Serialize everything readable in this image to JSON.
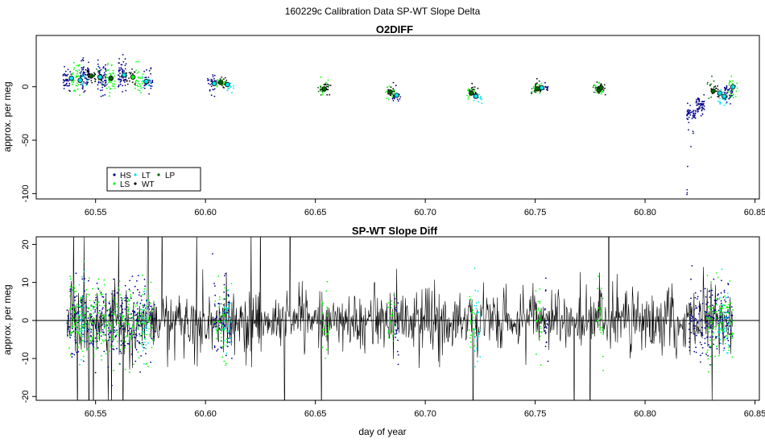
{
  "figure": {
    "main_title": "160229c   Calibration Data SP-WT Slope Delta",
    "xlabel": "day of year"
  },
  "chart_data": [
    {
      "type": "scatter",
      "title": "O2DIFF",
      "ylabel": "approx. per meg",
      "xlim": [
        60.523,
        60.852
      ],
      "ylim": [
        -105,
        48
      ],
      "x_ticks": [
        60.55,
        60.6,
        60.65,
        60.7,
        60.75,
        60.8,
        60.85
      ],
      "x_tick_labels": [
        "60.55",
        "60.60",
        "60.65",
        "60.70",
        "60.75",
        "60.80",
        "60.85"
      ],
      "y_ticks": [
        0,
        -50,
        -100
      ],
      "y_tick_labels": [
        "0",
        "-50",
        "-100"
      ],
      "legend": {
        "position": "bottom-left",
        "entries": [
          {
            "label": "HS",
            "color": "#00008b"
          },
          {
            "label": "LS",
            "color": "#00ff00"
          },
          {
            "label": "LT",
            "color": "#00e5ee"
          },
          {
            "label": "WT",
            "color": "#000000"
          },
          {
            "label": "LP",
            "color": "#006400"
          }
        ]
      },
      "series": [
        {
          "name": "HS",
          "color": "#00008b",
          "clusters": [
            {
              "x": 60.537,
              "y": 8,
              "sd": 5,
              "n": 40
            },
            {
              "x": 60.545,
              "y": 10,
              "sd": 7,
              "n": 60
            },
            {
              "x": 60.553,
              "y": 8,
              "sd": 7,
              "n": 60
            },
            {
              "x": 60.562,
              "y": 10,
              "sd": 7,
              "n": 60
            },
            {
              "x": 60.574,
              "y": 4,
              "sd": 5,
              "n": 40
            },
            {
              "x": 60.603,
              "y": 3,
              "sd": 6,
              "n": 30
            },
            {
              "x": 60.687,
              "y": -9,
              "sd": 2,
              "n": 15
            },
            {
              "x": 60.754,
              "y": -1,
              "sd": 2,
              "n": 15
            },
            {
              "x": 60.821,
              "y": -25,
              "sd": 4,
              "n": 50
            },
            {
              "x": 60.825,
              "y": -18,
              "sd": 4,
              "n": 60
            },
            {
              "x": 60.838,
              "y": -6,
              "sd": 4,
              "n": 40
            }
          ]
        },
        {
          "name": "LS",
          "color": "#00ff00",
          "clusters": [
            {
              "x": 60.541,
              "y": 8,
              "sd": 8,
              "n": 40
            },
            {
              "x": 60.557,
              "y": 9,
              "sd": 7,
              "n": 40
            },
            {
              "x": 60.57,
              "y": 6,
              "sd": 6,
              "n": 30
            },
            {
              "x": 60.607,
              "y": 4,
              "sd": 3,
              "n": 15
            },
            {
              "x": 60.654,
              "y": -1,
              "sd": 3,
              "n": 20
            },
            {
              "x": 60.684,
              "y": -6,
              "sd": 3,
              "n": 20
            },
            {
              "x": 60.721,
              "y": -5,
              "sd": 3,
              "n": 20
            },
            {
              "x": 60.751,
              "y": -2,
              "sd": 3,
              "n": 20
            },
            {
              "x": 60.779,
              "y": -2,
              "sd": 3,
              "n": 20
            },
            {
              "x": 60.84,
              "y": 0,
              "sd": 6,
              "n": 25
            }
          ]
        },
        {
          "name": "LT",
          "color": "#00e5ee",
          "clusters": [
            {
              "x": 60.544,
              "y": 6,
              "sd": 3,
              "n": 10
            },
            {
              "x": 60.573,
              "y": 5,
              "sd": 3,
              "n": 10
            },
            {
              "x": 60.611,
              "y": 1,
              "sd": 3,
              "n": 15
            },
            {
              "x": 60.724,
              "y": -10,
              "sd": 3,
              "n": 15
            },
            {
              "x": 60.835,
              "y": -12,
              "sd": 4,
              "n": 20
            }
          ]
        },
        {
          "name": "WT",
          "color": "#000000",
          "clusters": [
            {
              "x": 60.548,
              "y": 10,
              "sd": 4,
              "n": 20
            },
            {
              "x": 60.566,
              "y": 9,
              "sd": 4,
              "n": 20
            },
            {
              "x": 60.608,
              "y": 3,
              "sd": 3,
              "n": 12
            },
            {
              "x": 60.655,
              "y": -1,
              "sd": 3,
              "n": 15
            },
            {
              "x": 60.685,
              "y": -5,
              "sd": 3,
              "n": 15
            },
            {
              "x": 60.722,
              "y": -4,
              "sd": 3,
              "n": 15
            },
            {
              "x": 60.752,
              "y": 0,
              "sd": 3,
              "n": 15
            },
            {
              "x": 60.78,
              "y": -1,
              "sd": 3,
              "n": 15
            },
            {
              "x": 60.832,
              "y": -4,
              "sd": 3,
              "n": 15
            }
          ]
        },
        {
          "name": "LP",
          "color": "#006400",
          "clusters": [
            {
              "x": 60.551,
              "y": 9,
              "sd": 4,
              "n": 15
            },
            {
              "x": 60.606,
              "y": 4,
              "sd": 3,
              "n": 10
            },
            {
              "x": 60.653,
              "y": -2,
              "sd": 3,
              "n": 12
            },
            {
              "x": 60.75,
              "y": -3,
              "sd": 3,
              "n": 12
            },
            {
              "x": 60.778,
              "y": -3,
              "sd": 3,
              "n": 12
            },
            {
              "x": 60.83,
              "y": 0,
              "sd": 4,
              "n": 12
            }
          ]
        }
      ],
      "cluster_means": [
        {
          "x": 60.539,
          "y": 8,
          "color": "#00e5ee"
        },
        {
          "x": 60.543,
          "y": 6,
          "color": "#00e5ee"
        },
        {
          "x": 60.548,
          "y": 10,
          "color": "#006400"
        },
        {
          "x": 60.552,
          "y": 9,
          "color": "#00e5ee"
        },
        {
          "x": 60.557,
          "y": 8,
          "color": "#006400"
        },
        {
          "x": 60.563,
          "y": 11,
          "color": "#00e5ee"
        },
        {
          "x": 60.567,
          "y": 9,
          "color": "#00ff00"
        },
        {
          "x": 60.573,
          "y": 5,
          "color": "#00e5ee"
        },
        {
          "x": 60.604,
          "y": 3,
          "color": "#00e5ee"
        },
        {
          "x": 60.607,
          "y": 4,
          "color": "#006400"
        },
        {
          "x": 60.61,
          "y": 2,
          "color": "#00e5ee"
        },
        {
          "x": 60.654,
          "y": -2,
          "color": "#006400"
        },
        {
          "x": 60.684,
          "y": -5,
          "color": "#006400"
        },
        {
          "x": 60.687,
          "y": -8,
          "color": "#00e5ee"
        },
        {
          "x": 60.721,
          "y": -6,
          "color": "#006400"
        },
        {
          "x": 60.723,
          "y": -9,
          "color": "#00e5ee"
        },
        {
          "x": 60.751,
          "y": -2,
          "color": "#006400"
        },
        {
          "x": 60.753,
          "y": -1,
          "color": "#00e5ee"
        },
        {
          "x": 60.779,
          "y": -3,
          "color": "#006400"
        },
        {
          "x": 60.78,
          "y": -1,
          "color": "#006400"
        },
        {
          "x": 60.831,
          "y": -4,
          "color": "#006400"
        },
        {
          "x": 60.834,
          "y": -6,
          "color": "#00e5ee"
        },
        {
          "x": 60.836,
          "y": -9,
          "color": "#00e5ee"
        },
        {
          "x": 60.84,
          "y": 0,
          "color": "#00e5ee"
        }
      ]
    },
    {
      "type": "line",
      "title": "SP-WT Slope Diff",
      "ylabel": "approx. per meg",
      "xlabel": "day of year",
      "xlim": [
        60.523,
        60.852
      ],
      "ylim": [
        -21,
        22
      ],
      "x_ticks": [
        60.55,
        60.6,
        60.65,
        60.7,
        60.75,
        60.8,
        60.85
      ],
      "x_tick_labels": [
        "60.55",
        "60.60",
        "60.65",
        "60.70",
        "60.75",
        "60.80",
        "60.85"
      ],
      "y_ticks": [
        -20,
        -10,
        0,
        10,
        20
      ],
      "y_tick_labels": [
        "-20",
        "-10",
        "0",
        "10",
        "20"
      ],
      "reference_line": 0,
      "noise_trace": {
        "name": "SP-WT slope diff",
        "color": "#000000",
        "x_range": [
          60.537,
          60.84
        ],
        "typical_amplitude": 8,
        "step": 0.00025
      },
      "dense_spans": [
        {
          "color": "#00008b",
          "x_ranges": [
            [
              60.537,
              60.56
            ],
            [
              60.561,
              60.577
            ],
            [
              60.603,
              60.612
            ],
            [
              60.686,
              60.688
            ],
            [
              60.754,
              60.756
            ],
            [
              60.82,
              60.84
            ]
          ]
        },
        {
          "color": "#00ff00",
          "x_ranges": [
            [
              60.538,
              60.576
            ],
            [
              60.604,
              60.61
            ],
            [
              60.653,
              60.656
            ],
            [
              60.683,
              60.686
            ],
            [
              60.72,
              60.723
            ],
            [
              60.75,
              60.753
            ],
            [
              60.778,
              60.781
            ],
            [
              60.828,
              60.84
            ]
          ]
        },
        {
          "color": "#00e5ee",
          "x_ranges": [
            [
              60.542,
              60.545
            ],
            [
              60.571,
              60.574
            ],
            [
              60.608,
              60.612
            ],
            [
              60.722,
              60.725
            ],
            [
              60.833,
              60.838
            ]
          ]
        }
      ]
    }
  ]
}
